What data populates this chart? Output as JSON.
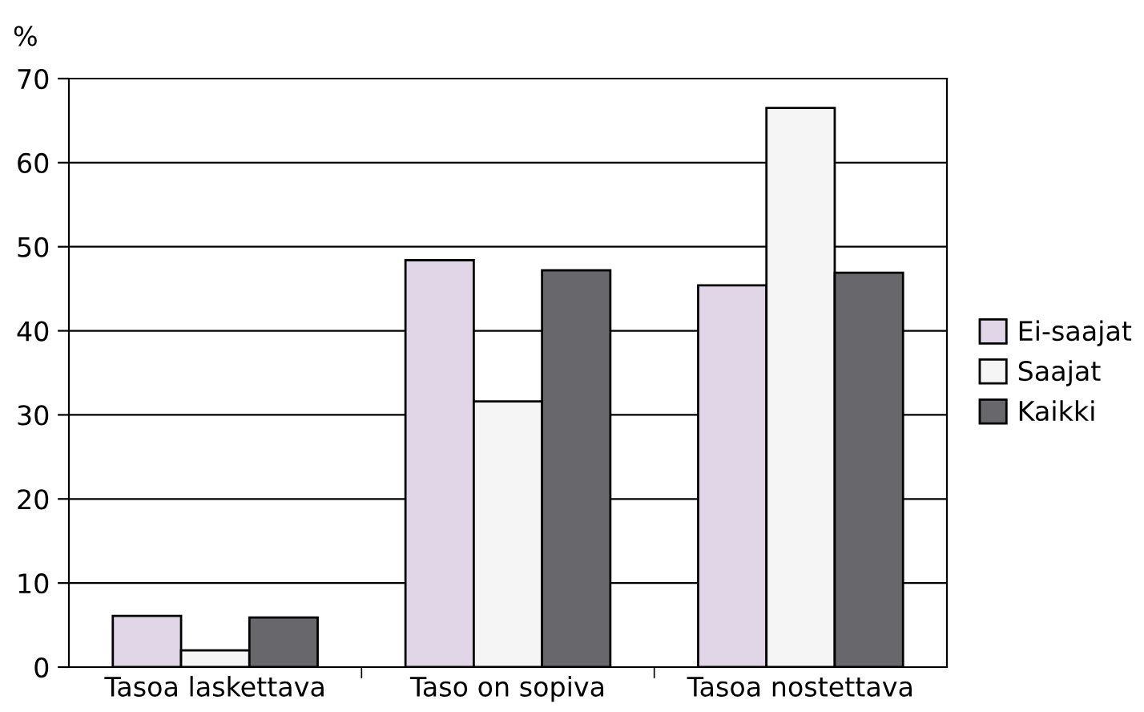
{
  "chart_data": {
    "type": "bar",
    "ylabel": "%",
    "categories": [
      "Tasoa laskettava",
      "Taso on sopiva",
      "Tasoa nostettava"
    ],
    "series": [
      {
        "name": "Ei-saajat",
        "color": "#e0d6e8",
        "values": [
          6.1,
          48.4,
          45.4
        ]
      },
      {
        "name": "Saajat",
        "color": "#f5f5f5",
        "values": [
          2.0,
          31.6,
          66.5
        ]
      },
      {
        "name": "Kaikki",
        "color": "#68676c",
        "values": [
          5.9,
          47.2,
          46.9
        ]
      }
    ],
    "ylim": [
      0,
      70
    ],
    "yticks": [
      0,
      10,
      20,
      30,
      40,
      50,
      60,
      70
    ],
    "grid": "y",
    "legend": "right"
  }
}
